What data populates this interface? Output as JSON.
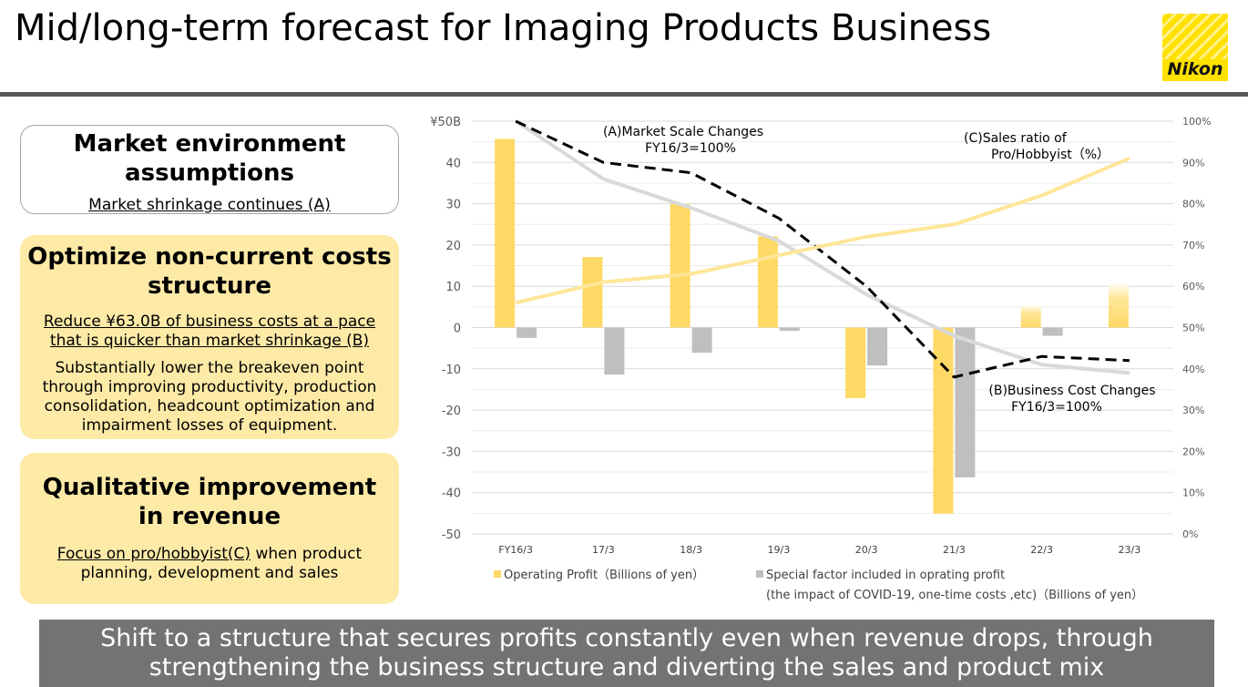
{
  "slide": {
    "title": "Mid/long-term forecast for Imaging Products Business",
    "logo_text": "Nikon",
    "brand_color": "#ffe100"
  },
  "boxes": {
    "market": {
      "title_line1": "Market environment",
      "title_line2": "assumptions",
      "text": "Market shrinkage continues (A)"
    },
    "costs": {
      "title_line1": "Optimize non-current costs",
      "title_line2": "structure",
      "underlined_line1": "Reduce ¥63.0B of business costs at a pace",
      "underlined_line2": "that is quicker than market shrinkage (B)",
      "body_line1": "Substantially lower the breakeven point",
      "body_line2": "through improving productivity, production",
      "body_line3": "consolidation, headcount optimization and",
      "body_line4": "impairment losses of equipment."
    },
    "revenue": {
      "title_line1": "Qualitative improvement",
      "title_line2": "in revenue",
      "underlined": "Focus on pro/hobbyist(C)",
      "text_tail": " when product",
      "text_line2": "planning, development and sales"
    }
  },
  "banner": {
    "line1": "Shift to a structure that secures profits constantly even when revenue drops, through",
    "line2": "strengthening the business structure and diverting the sales and product mix"
  },
  "chart_data": {
    "type": "bar",
    "categories": [
      "FY16/3",
      "17/3",
      "18/3",
      "19/3",
      "20/3",
      "21/3",
      "22/3",
      "23/3"
    ],
    "left_axis": {
      "ylim": [
        -50,
        50
      ],
      "ticks": [
        "¥50B",
        "40",
        "30",
        "20",
        "10",
        "0",
        "-10",
        "-20",
        "-30",
        "-40",
        "-50"
      ],
      "tick_values": [
        50,
        40,
        30,
        20,
        10,
        0,
        -10,
        -20,
        -30,
        -40,
        -50
      ]
    },
    "right_axis": {
      "ylim": [
        0,
        100
      ],
      "ticks": [
        "100%",
        "90%",
        "80%",
        "70%",
        "60%",
        "50%",
        "40%",
        "30%",
        "20%",
        "10%",
        "0%"
      ],
      "tick_values": [
        100,
        90,
        80,
        70,
        60,
        50,
        40,
        30,
        20,
        10,
        0
      ]
    },
    "grid": true,
    "series": [
      {
        "name": "Operating Profit（Billions of yen）",
        "kind": "bar",
        "color": "#ffd966",
        "faded_after": 6,
        "values": [
          45.7,
          17.1,
          29.9,
          22.1,
          -17.1,
          -45.1,
          5.6,
          11.0
        ]
      },
      {
        "name": "Special factor included in oprating profit",
        "kind": "bar",
        "color": "#bfbfbf",
        "values": [
          -2.5,
          -11.4,
          -6.1,
          -0.8,
          -9.2,
          -36.3,
          -2.0,
          null
        ]
      },
      {
        "kind": "line",
        "axis": "right",
        "color": "#d9d9d9",
        "style": "solid",
        "values": [
          100,
          86,
          79,
          71,
          58,
          48,
          41,
          39
        ]
      },
      {
        "kind": "line",
        "axis": "right",
        "color": "#000000",
        "style": "dashed",
        "values": [
          100,
          90,
          87.5,
          76.5,
          60,
          38,
          43,
          42
        ]
      },
      {
        "kind": "line",
        "axis": "right",
        "color": "#ffe699",
        "style": "solid",
        "values": [
          56,
          61,
          63,
          67.5,
          72,
          75,
          82,
          91
        ]
      }
    ],
    "legend": {
      "item1": "Operating Profit（Billions of yen）",
      "item2": "Special factor included in oprating profit",
      "item2_line2": "(the impact of COVID-19, one-time costs ,etc)（Billions of yen）"
    },
    "annotations": {
      "a_line1": "(A)Market Scale Changes",
      "a_line2": "FY16/3=100%",
      "b_line1": "(B)Business Cost Changes",
      "b_line2": "FY16/3=100%",
      "c_line1": "(C)Sales ratio of",
      "c_line2": "Pro/Hobbyist（%）"
    }
  }
}
